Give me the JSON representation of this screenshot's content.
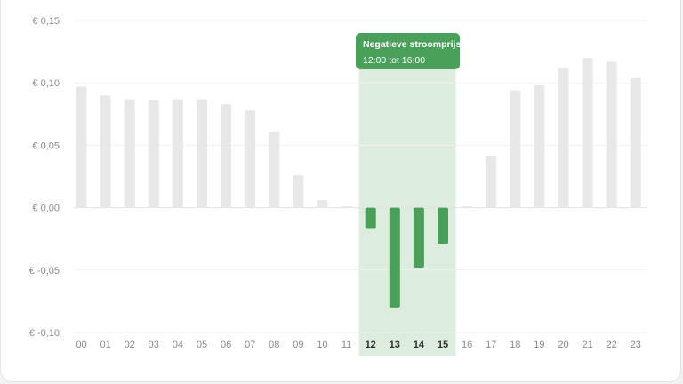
{
  "chart_data": {
    "type": "bar",
    "categories": [
      "00",
      "01",
      "02",
      "03",
      "04",
      "05",
      "06",
      "07",
      "08",
      "09",
      "10",
      "11",
      "12",
      "13",
      "14",
      "15",
      "16",
      "17",
      "18",
      "19",
      "20",
      "21",
      "22",
      "23"
    ],
    "values": [
      0.097,
      0.09,
      0.087,
      0.086,
      0.087,
      0.087,
      0.083,
      0.078,
      0.061,
      0.026,
      0.006,
      0.001,
      -0.017,
      -0.08,
      -0.048,
      -0.029,
      0.001,
      0.041,
      0.094,
      0.098,
      0.112,
      0.12,
      0.117,
      0.104
    ],
    "y_ticks": [
      0.15,
      0.1,
      0.05,
      0.0,
      -0.05,
      -0.1
    ],
    "y_tick_labels": [
      "€ 0,15",
      "€ 0,10",
      "€ 0,05",
      "€ 0,00",
      "€ -0,05",
      "€ -0,10"
    ],
    "ylim": [
      -0.1,
      0.15
    ],
    "grid": true,
    "highlight": {
      "from": "12",
      "to": "15"
    },
    "annotation": {
      "title": "Negatieve stroomprijs",
      "subtitle": "12:00 tot 16:00"
    },
    "colors": {
      "bar_default": "#e8e8e8",
      "bar_negative": "#4aa05a",
      "highlight_band": "#dcecdf",
      "tooltip": "#4aa05a"
    }
  }
}
